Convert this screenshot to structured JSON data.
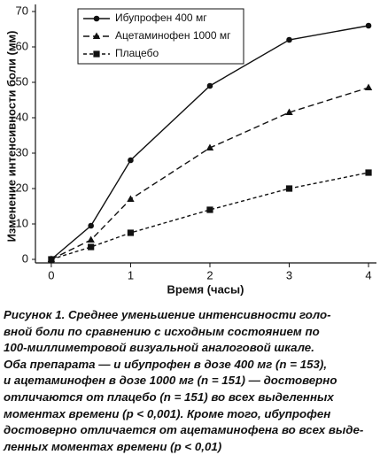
{
  "chart_data": {
    "type": "line",
    "x_label": "Время (часы)",
    "y_label": "Изменение интенсивности боли (мм)",
    "x": [
      0,
      0.5,
      1,
      2,
      3,
      4
    ],
    "series": [
      {
        "name": "Ибупрофен 400 мг",
        "color": "#111111",
        "dash": "none",
        "marker": "circle",
        "values": [
          0,
          9.5,
          28,
          49,
          62,
          66
        ]
      },
      {
        "name": "Ацетаминофен 1000 мг",
        "color": "#111111",
        "dash": "7 4",
        "marker": "triangle",
        "values": [
          0,
          5.5,
          17,
          31.5,
          41.5,
          48.5
        ]
      },
      {
        "name": "Плацебо",
        "color": "#111111",
        "dash": "4 3",
        "marker": "square",
        "values": [
          0,
          3.5,
          7.5,
          14,
          20,
          24.5
        ]
      }
    ],
    "xlim": [
      -0.2,
      4.1
    ],
    "xticks": [
      0,
      1,
      2,
      3,
      4
    ],
    "ylim": [
      -1,
      72
    ],
    "yticks": [
      0,
      10,
      20,
      30,
      40,
      50,
      60,
      70
    ],
    "legend": "upper-left"
  },
  "caption": {
    "lines": [
      "Рисунок 1. Среднее уменьшение интенсивности голо-",
      "вной боли по сравнению с исходным состоянием по",
      "100-миллиметровой визуальной аналоговой шкале.",
      "Оба препарата — и ибупрофен в дозе 400 мг (n = 153),",
      "и ацетаминофен в дозе 1000 мг (n = 151) — достоверно",
      "отличаются от плацебо (n = 151) во всех выделенных",
      "моментах времени (p < 0,001). Кроме того, ибупрофен",
      "достоверно отличается от ацетаминофена во всех выде-",
      "ленных моментах времени (p < 0,01)"
    ]
  }
}
